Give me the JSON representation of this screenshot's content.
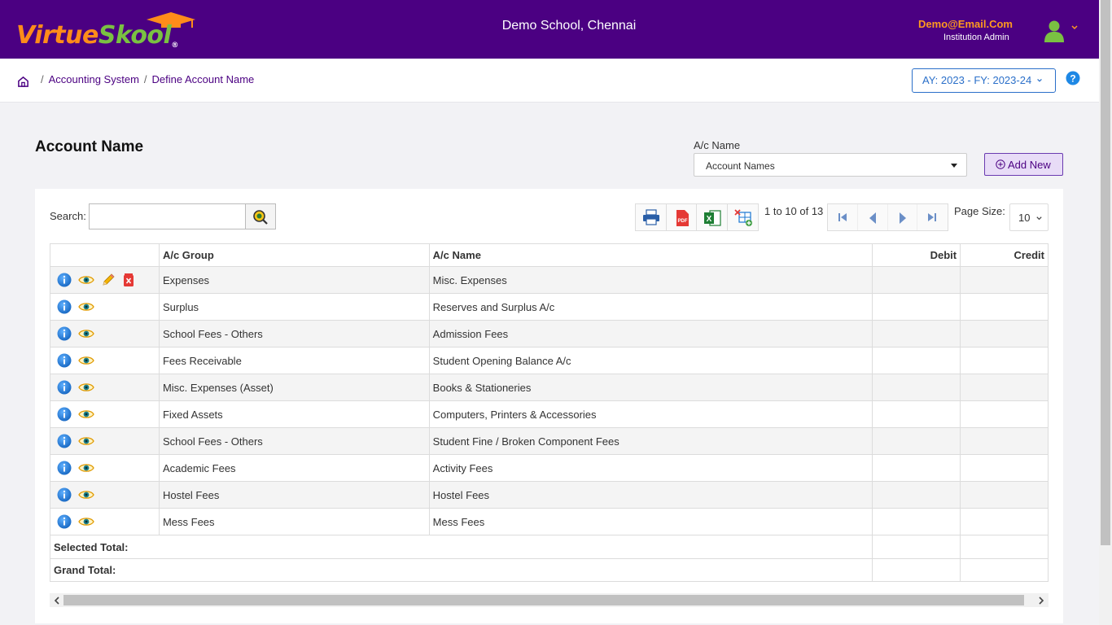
{
  "brand": {
    "logo_part1": "Virtue",
    "logo_part2": "Skool",
    "registered": "®",
    "colors": {
      "header_bg": "#4b0082",
      "accent_orange": "#ff8c1a",
      "accent_green": "#7ac142"
    }
  },
  "header": {
    "school_name": "Demo School, Chennai",
    "user_email": "Demo@Email.Com",
    "user_role": "Institution Admin"
  },
  "breadcrumb": {
    "items": [
      "Accounting System",
      "Define Account Name"
    ],
    "separator": "/"
  },
  "academic_year": {
    "label": "AY: 2023 - FY: 2023-24"
  },
  "page": {
    "title": "Account Name",
    "filter_label": "A/c Name",
    "filter_value": "Account Names",
    "add_new_label": "Add New"
  },
  "toolbar": {
    "search_label": "Search:",
    "search_value": "",
    "pager_text": "1 to 10 of 13",
    "page_size_label": "Page Size:",
    "page_size_value": "10",
    "icons": [
      "print-icon",
      "pdf-icon",
      "excel-icon",
      "column-chooser-icon",
      "first-page-icon",
      "prev-page-icon",
      "next-page-icon",
      "last-page-icon"
    ]
  },
  "table": {
    "columns": [
      "",
      "A/c Group",
      "A/c Name",
      "Debit",
      "Credit"
    ],
    "rows": [
      {
        "group": "Expenses",
        "name": "Misc. Expenses",
        "debit": "",
        "credit": "",
        "editable": true
      },
      {
        "group": "Surplus",
        "name": "Reserves and Surplus A/c",
        "debit": "",
        "credit": "",
        "editable": false
      },
      {
        "group": "School Fees - Others",
        "name": "Admission Fees",
        "debit": "",
        "credit": "",
        "editable": false
      },
      {
        "group": "Fees Receivable",
        "name": "Student Opening Balance A/c",
        "debit": "",
        "credit": "",
        "editable": false
      },
      {
        "group": "Misc. Expenses (Asset)",
        "name": "Books & Stationeries",
        "debit": "",
        "credit": "",
        "editable": false
      },
      {
        "group": "Fixed Assets",
        "name": "Computers, Printers & Accessories",
        "debit": "",
        "credit": "",
        "editable": false
      },
      {
        "group": "School Fees - Others",
        "name": "Student Fine / Broken Component Fees",
        "debit": "",
        "credit": "",
        "editable": false
      },
      {
        "group": "Academic Fees",
        "name": "Activity Fees",
        "debit": "",
        "credit": "",
        "editable": false
      },
      {
        "group": "Hostel Fees",
        "name": "Hostel Fees",
        "debit": "",
        "credit": "",
        "editable": false
      },
      {
        "group": "Mess Fees",
        "name": "Mess Fees",
        "debit": "",
        "credit": "",
        "editable": false
      }
    ],
    "selected_total_label": "Selected Total:",
    "grand_total_label": "Grand Total:"
  }
}
